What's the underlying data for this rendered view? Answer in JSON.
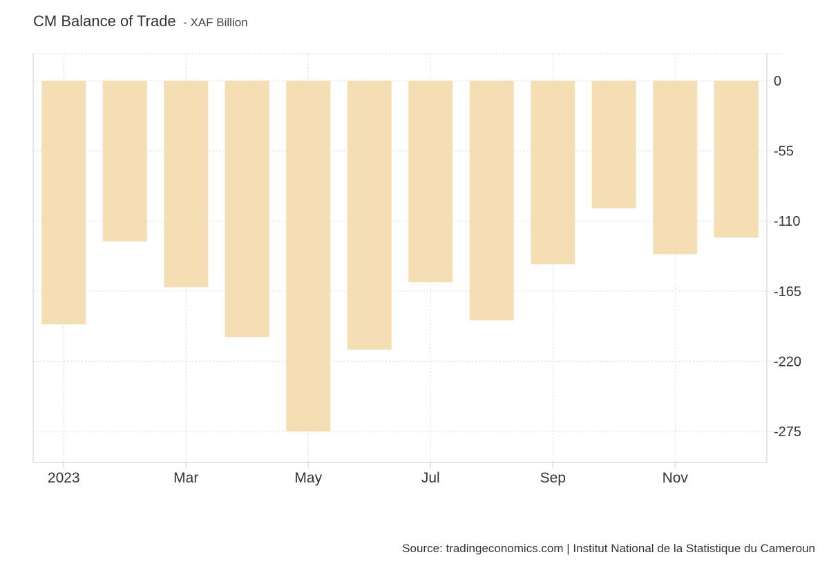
{
  "chart_title": "CM Balance of Trade",
  "chart_subtitle": "- XAF Billion",
  "source": "Source: tradingeconomics.com | Institut National de la Statistique du Cameroun",
  "chart_data": {
    "type": "bar",
    "title": "CM Balance of Trade",
    "subtitle": "XAF Billion",
    "categories": [
      "2023-01",
      "2023-02",
      "2023-03",
      "2023-04",
      "2023-05",
      "2023-06",
      "2023-07",
      "2023-08",
      "2023-09",
      "2023-10",
      "2023-11",
      "2023-12"
    ],
    "values": [
      -191,
      -126,
      -162,
      -201,
      -275,
      -211,
      -158,
      -188,
      -144,
      -100,
      -136,
      -123
    ],
    "x_tick_labels": [
      {
        "category": "2023-01",
        "label": "2023"
      },
      {
        "category": "2023-03",
        "label": "Mar"
      },
      {
        "category": "2023-05",
        "label": "May"
      },
      {
        "category": "2023-07",
        "label": "Jul"
      },
      {
        "category": "2023-09",
        "label": "Sep"
      },
      {
        "category": "2023-11",
        "label": "Nov"
      }
    ],
    "y_ticks": [
      0,
      -55,
      -110,
      -165,
      -220,
      -275
    ],
    "ylim": [
      -300,
      20
    ],
    "bar_color": "#f5deb3",
    "grid": true,
    "y_axis_position": "right"
  }
}
